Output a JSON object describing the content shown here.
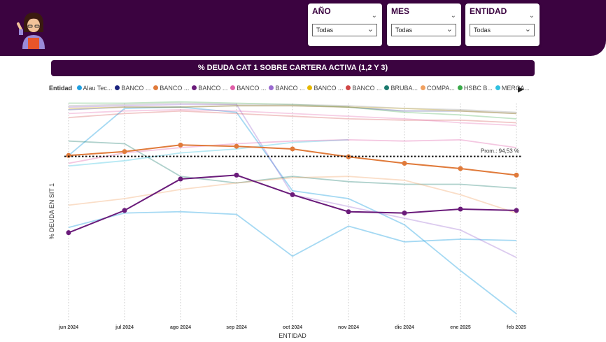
{
  "filters": [
    {
      "title": "AÑO",
      "value": "Todas"
    },
    {
      "title": "MES",
      "value": "Todas"
    },
    {
      "title": "ENTIDAD",
      "value": "Todas"
    }
  ],
  "chart_data": {
    "type": "line",
    "title": "% DEUDA CAT 1 SOBRE CARTERA ACTIVA (1,2 Y 3)",
    "xlabel": "ENTIDAD",
    "ylabel": "% DEUDA EN SIT 1",
    "legend_title": "Entidad",
    "legend_placement": "top",
    "categories": [
      "jun 2024",
      "jul 2024",
      "ago 2024",
      "sep 2024",
      "oct 2024",
      "nov 2024",
      "dic 2024",
      "ene 2025",
      "feb 2025"
    ],
    "ylim": [
      82,
      99
    ],
    "grid": "vertical dotted",
    "reference_line": {
      "label": "Prom.: 94,53 %",
      "value": 94.53
    },
    "legend": [
      {
        "name": "Alau Tec...",
        "color": "#1f9fe0"
      },
      {
        "name": "BANCO ...",
        "color": "#1a237e"
      },
      {
        "name": "BANCO ...",
        "color": "#e07a3a"
      },
      {
        "name": "BANCO ...",
        "color": "#6a1b7a"
      },
      {
        "name": "BANCO ...",
        "color": "#e05fa8"
      },
      {
        "name": "BANCO ...",
        "color": "#9a6ad0"
      },
      {
        "name": "BANCO ...",
        "color": "#e6b800"
      },
      {
        "name": "BANCO ...",
        "color": "#d04545"
      },
      {
        "name": "BRUBA...",
        "color": "#1b7a6e"
      },
      {
        "name": "COMPA...",
        "color": "#f0a060"
      },
      {
        "name": "HSBC B...",
        "color": "#3aaa4a"
      },
      {
        "name": "MERCA...",
        "color": "#30c0e0"
      }
    ],
    "series": [
      {
        "color": "#1f9fe0",
        "opacity": 0.4,
        "values": [
          94.6,
          98.2,
          98.3,
          97.9,
          91.9,
          91.3,
          89.3,
          85.8,
          82.5
        ]
      },
      {
        "color": "#1f9fe0",
        "opacity": 0.4,
        "values": [
          89.1,
          90.2,
          90.3,
          90.1,
          86.9,
          89.2,
          88.0,
          88.2,
          88.1
        ]
      },
      {
        "color": "#e07a3a",
        "opacity": 1,
        "highlight": true,
        "values": [
          94.6,
          94.9,
          95.4,
          95.3,
          95.1,
          94.5,
          94.0,
          93.6,
          93.1
        ]
      },
      {
        "color": "#6a1b7a",
        "opacity": 1,
        "highlight": true,
        "values": [
          88.7,
          90.4,
          92.8,
          93.1,
          91.6,
          90.3,
          90.2,
          90.5,
          90.4
        ]
      },
      {
        "color": "#9a6ad0",
        "opacity": 0.35,
        "values": [
          98.3,
          98.4,
          98.5,
          98.5,
          91.6,
          90.7,
          89.8,
          88.9,
          86.8
        ]
      },
      {
        "color": "#1b7a6e",
        "opacity": 0.35,
        "values": [
          95.7,
          95.5,
          93.0,
          92.5,
          93.0,
          92.6,
          92.4,
          92.4,
          92.1
        ]
      },
      {
        "color": "#f0a060",
        "opacity": 0.35,
        "values": [
          90.8,
          91.3,
          92.0,
          92.5,
          92.9,
          93.0,
          92.7,
          91.6,
          90.2
        ]
      },
      {
        "color": "#30c0e0",
        "opacity": 0.35,
        "values": [
          93.8,
          94.2,
          94.8,
          95.1,
          95.6,
          95.8,
          null,
          null,
          null
        ]
      },
      {
        "color": "#e05fa8",
        "opacity": 0.35,
        "values": [
          94.0,
          94.8,
          95.2,
          95.5,
          95.7,
          95.8,
          95.7,
          95.8,
          95.2
        ]
      },
      {
        "color": "#3aaa4a",
        "opacity": 0.3,
        "values": [
          98.6,
          98.6,
          98.7,
          98.6,
          98.5,
          98.3,
          97.9,
          97.7,
          97.4
        ]
      },
      {
        "color": "#1a237e",
        "opacity": 0.3,
        "values": [
          98.1,
          98.3,
          98.3,
          98.4,
          98.4,
          98.3,
          98.0,
          98.0,
          97.8
        ]
      },
      {
        "color": "#d04545",
        "opacity": 0.3,
        "values": [
          97.5,
          97.8,
          98.0,
          97.8,
          97.6,
          97.4,
          97.3,
          97.3,
          97.1
        ]
      },
      {
        "color": "#e6b800",
        "opacity": 0.3,
        "values": [
          98.2,
          98.3,
          98.3,
          98.4,
          98.4,
          98.3,
          98.2,
          98.0,
          97.8
        ]
      },
      {
        "color": "#e05fa8",
        "opacity": 0.3,
        "values": [
          97.8,
          98.0,
          98.1,
          98.0,
          97.8,
          97.6,
          97.4,
          97.1,
          96.9
        ]
      },
      {
        "color": "#8a8a8a",
        "opacity": 0.3,
        "values": [
          98.4,
          98.5,
          98.6,
          98.5,
          98.5,
          98.4,
          98.2,
          98.1,
          97.9
        ]
      }
    ]
  }
}
